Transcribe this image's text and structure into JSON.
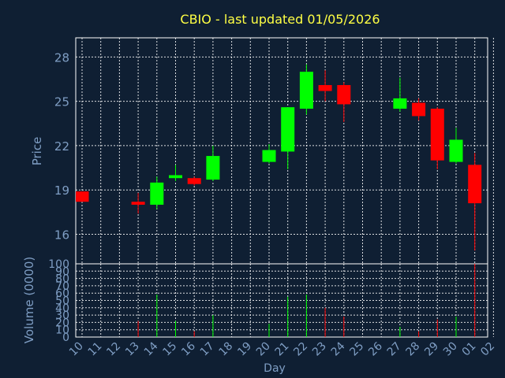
{
  "chart_data": {
    "type": "candlestick",
    "title": "CBIO - last updated 01/05/2026",
    "xlabel": "Day",
    "price_panel": {
      "ylabel": "Price",
      "yticks": [
        16,
        19,
        22,
        25,
        28
      ],
      "ylim": [
        14,
        29.3
      ]
    },
    "volume_panel": {
      "ylabel": "Volume (0000)",
      "yticks": [
        0,
        10,
        20,
        30,
        40,
        50,
        60,
        70,
        80,
        90,
        100
      ],
      "ylim": [
        0,
        100
      ]
    },
    "grid": true,
    "x_ticks": [
      "10",
      "11",
      "12",
      "13",
      "14",
      "15",
      "16",
      "17",
      "18",
      "19",
      "20",
      "21",
      "22",
      "23",
      "24",
      "25",
      "26",
      "27",
      "28",
      "29",
      "30",
      "01",
      "02"
    ],
    "colors": {
      "up": "#00ff00",
      "down": "#ff0000",
      "background": "#0f1f33",
      "title": "#ffff44",
      "axis_text": "#7f9ec4"
    },
    "candles": [
      {
        "x": "10",
        "open": 18.9,
        "high": 18.9,
        "low": 18.2,
        "close": 18.2,
        "volume": 0
      },
      {
        "x": "13",
        "open": 18.2,
        "high": 18.8,
        "low": 17.4,
        "close": 18.0,
        "volume": 22
      },
      {
        "x": "14",
        "open": 18.0,
        "high": 19.9,
        "low": 17.7,
        "close": 19.5,
        "volume": 58
      },
      {
        "x": "15",
        "open": 19.8,
        "high": 20.7,
        "low": 19.6,
        "close": 20.0,
        "volume": 22
      },
      {
        "x": "16",
        "open": 19.8,
        "high": 19.9,
        "low": 19.3,
        "close": 19.4,
        "volume": 8
      },
      {
        "x": "17",
        "open": 19.7,
        "high": 22.0,
        "low": 19.6,
        "close": 21.3,
        "volume": 30
      },
      {
        "x": "20",
        "open": 20.9,
        "high": 22.1,
        "low": 20.8,
        "close": 21.7,
        "volume": 18
      },
      {
        "x": "21",
        "open": 21.6,
        "high": 24.6,
        "low": 20.4,
        "close": 24.6,
        "volume": 55
      },
      {
        "x": "22",
        "open": 24.5,
        "high": 27.5,
        "low": 24.1,
        "close": 27.0,
        "volume": 58
      },
      {
        "x": "23",
        "open": 26.1,
        "high": 27.1,
        "low": 25.0,
        "close": 25.7,
        "volume": 40
      },
      {
        "x": "24",
        "open": 26.1,
        "high": 26.3,
        "low": 23.6,
        "close": 24.8,
        "volume": 28
      },
      {
        "x": "27",
        "open": 24.5,
        "high": 26.6,
        "low": 24.3,
        "close": 25.2,
        "volume": 14
      },
      {
        "x": "28",
        "open": 24.9,
        "high": 25.2,
        "low": 23.7,
        "close": 24.0,
        "volume": 8
      },
      {
        "x": "29",
        "open": 24.5,
        "high": 24.6,
        "low": 20.4,
        "close": 21.0,
        "volume": 24
      },
      {
        "x": "30",
        "open": 20.9,
        "high": 23.2,
        "low": 20.8,
        "close": 22.4,
        "volume": 28
      },
      {
        "x": "01",
        "open": 20.7,
        "high": 21.5,
        "low": 14.9,
        "close": 18.1,
        "volume": 100
      }
    ]
  }
}
